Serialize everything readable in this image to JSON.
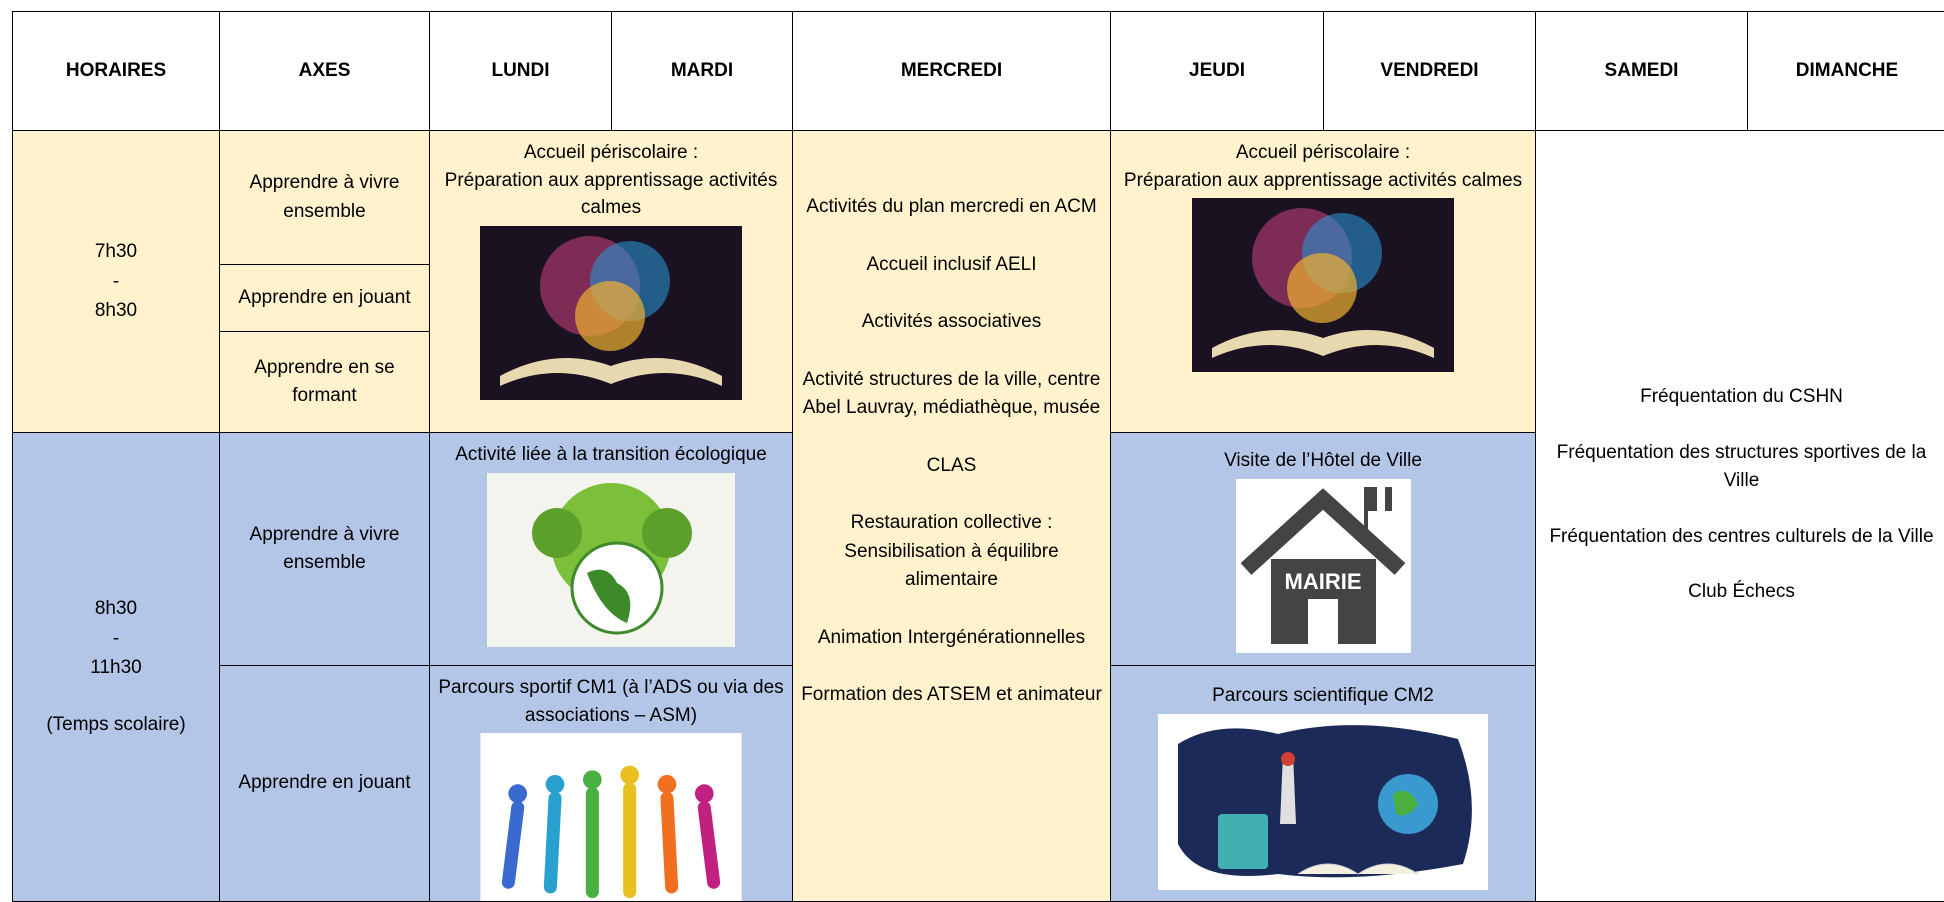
{
  "header": [
    "HORAIRES",
    "AXES",
    "LUNDI",
    "MARDI",
    "MERCREDI",
    "JEUDI",
    "VENDREDI",
    "SAMEDI",
    "DIMANCHE"
  ],
  "slots": [
    {
      "time": [
        "7h30",
        "-",
        "8h30"
      ],
      "axes": [
        "Apprendre à vivre ensemble",
        "Apprendre en jouant",
        "Apprendre en se formant"
      ]
    },
    {
      "time": [
        "8h30",
        "-",
        "11h30",
        "(Temps scolaire)"
      ],
      "axes": [
        "Apprendre à vivre ensemble",
        "Apprendre en jouant"
      ]
    }
  ],
  "lundi_mardi": [
    [
      "Accueil périscolaire :",
      "Préparation aux apprentissage activités calmes"
    ],
    [
      "Activité liée à la transition écologique"
    ],
    [
      "Parcours sportif CM1 (à l’ADS ou via des associations – ASM)"
    ]
  ],
  "mercredi": [
    "Activités du plan mercredi en ACM",
    "Accueil inclusif AELI",
    "Activités associatives",
    "Activité structures de la ville, centre Abel Lauvray, médiathèque, musée",
    "CLAS",
    "Restauration collective : Sensibilisation à équilibre alimentaire",
    "Animation Intergénérationnelles",
    "Formation des ATSEM et animateur"
  ],
  "jeudi_vendredi": [
    [
      "Accueil périscolaire :",
      "Préparation aux apprentissage activités calmes"
    ],
    [
      "Visite de l’Hôtel de Ville"
    ],
    [
      "Parcours scientifique CM2"
    ]
  ],
  "mairie_sign": "MAIRIE",
  "weekend": [
    "Fréquentation du CSHN",
    "Fréquentation des structures sportives de la Ville",
    "Fréquentation des centres culturels de la Ville",
    "Club Échecs"
  ]
}
